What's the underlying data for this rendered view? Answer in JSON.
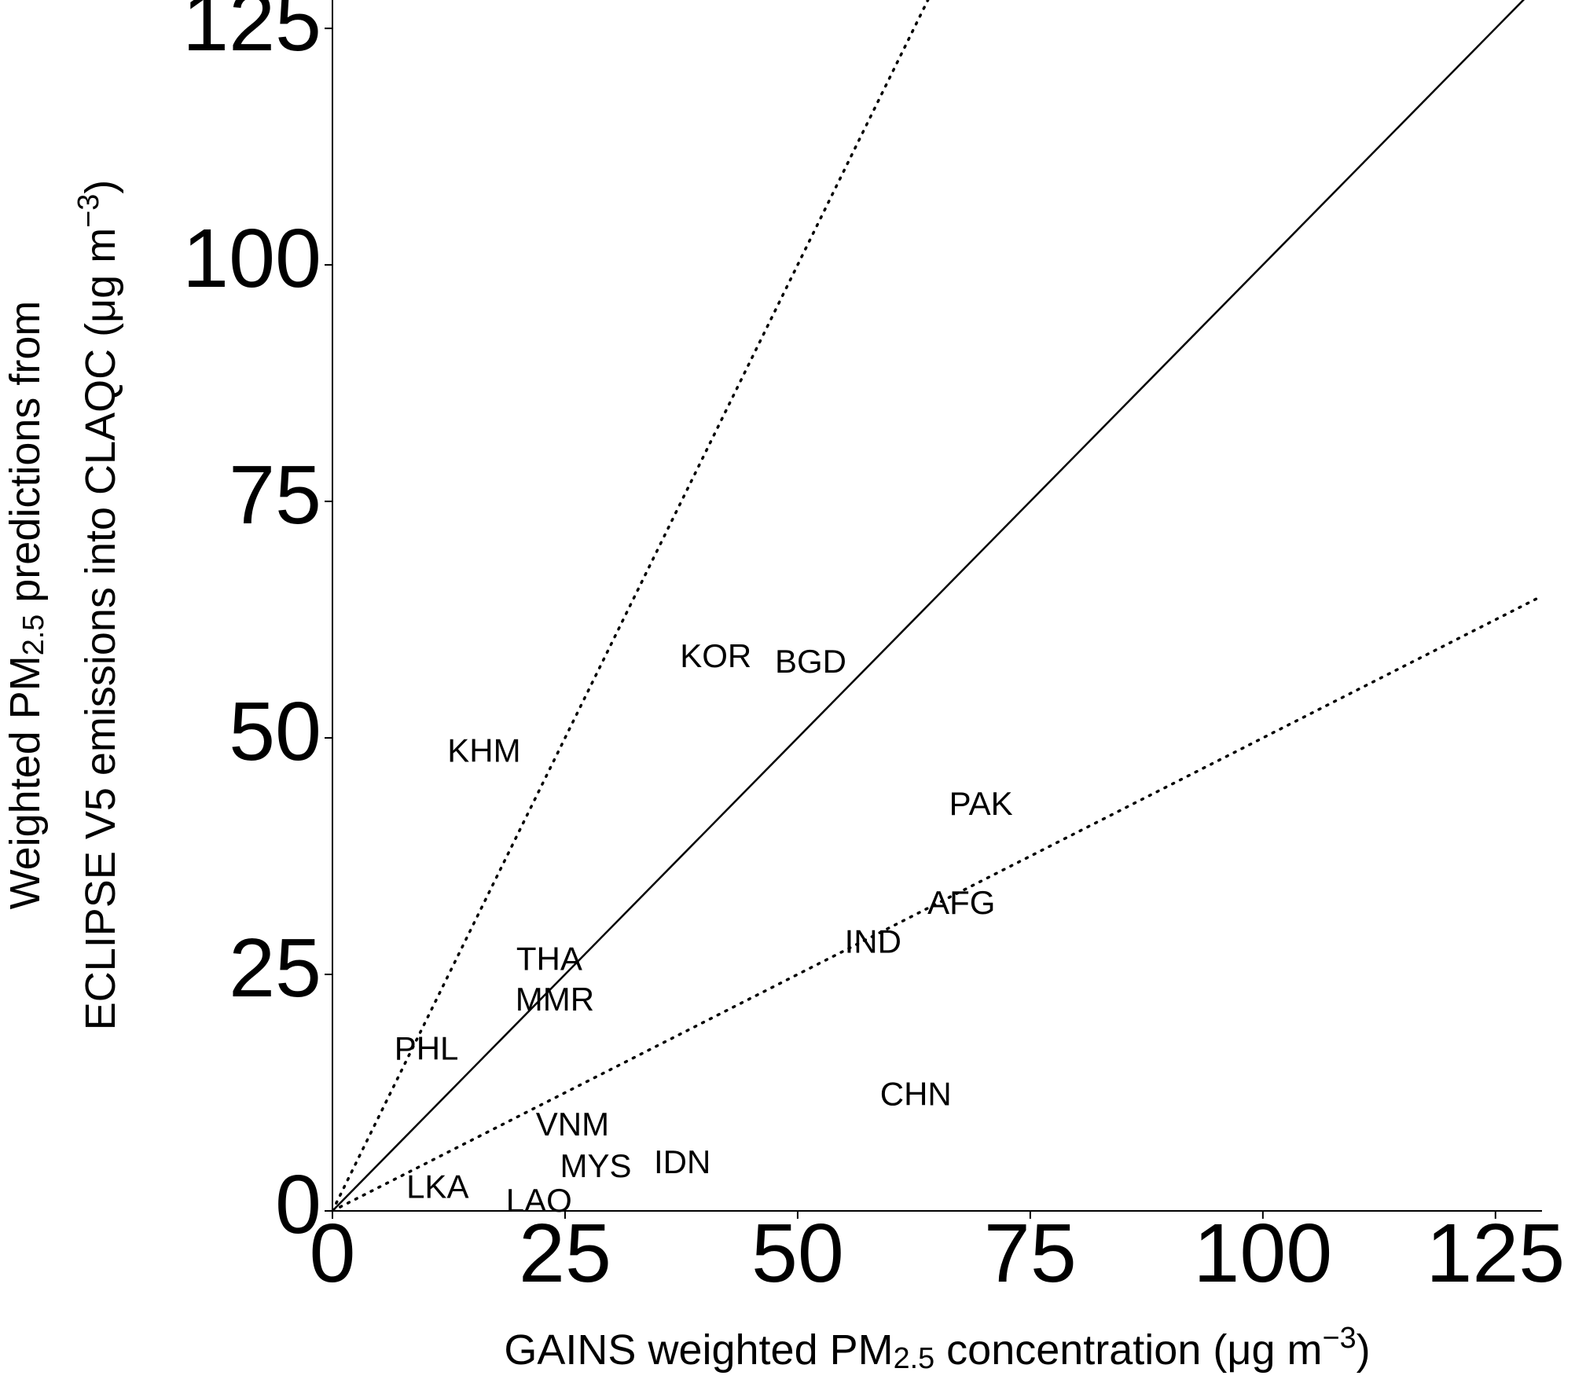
{
  "chart_data": {
    "type": "scatter",
    "xlabel": [
      {
        "text": "GAINS weighted PM",
        "style": "normal"
      },
      {
        "text": "2.5",
        "style": "sub"
      },
      {
        "text": " concentration (μg m",
        "style": "normal"
      },
      {
        "text": "−3",
        "style": "sup"
      },
      {
        "text": ")",
        "style": "normal"
      }
    ],
    "ylabel": [
      [
        {
          "text": "Weighted PM",
          "style": "normal"
        },
        {
          "text": "2.5",
          "style": "sub"
        },
        {
          "text": " predictions from",
          "style": "normal"
        }
      ],
      [
        {
          "text": "ECLIPSE V5 emissions into CLAQC (μg m",
          "style": "normal"
        },
        {
          "text": "−3",
          "style": "sup"
        },
        {
          "text": ")",
          "style": "normal"
        }
      ]
    ],
    "xlim": [
      0,
      130
    ],
    "ylim": [
      0,
      128
    ],
    "xticks": [
      0,
      25,
      50,
      75,
      100,
      125
    ],
    "yticks": [
      0,
      25,
      50,
      75,
      100,
      125
    ],
    "reference_lines": [
      {
        "slope": 1,
        "style": "solid"
      },
      {
        "slope": 2,
        "style": "dotted"
      },
      {
        "slope": 0.5,
        "style": "dotted"
      }
    ],
    "color": "#000000",
    "labels": [
      "KOR",
      "BGD",
      "KHM",
      "PAK",
      "AFG",
      "IND",
      "THA",
      "MMR",
      "PHL",
      "CHN",
      "VNM",
      "IDN",
      "MYS",
      "LKA",
      "LAO"
    ],
    "x": [
      41.2,
      51.4,
      16.3,
      69.7,
      67.6,
      58.1,
      23.3,
      23.9,
      10.1,
      62.7,
      25.8,
      37.6,
      28.3,
      11.3,
      22.2
    ],
    "y": [
      58.4,
      57.8,
      48.4,
      42.8,
      32.3,
      28.2,
      26.4,
      22.1,
      16.9,
      12.1,
      8.9,
      4.9,
      4.5,
      2.3,
      0.85
    ]
  }
}
